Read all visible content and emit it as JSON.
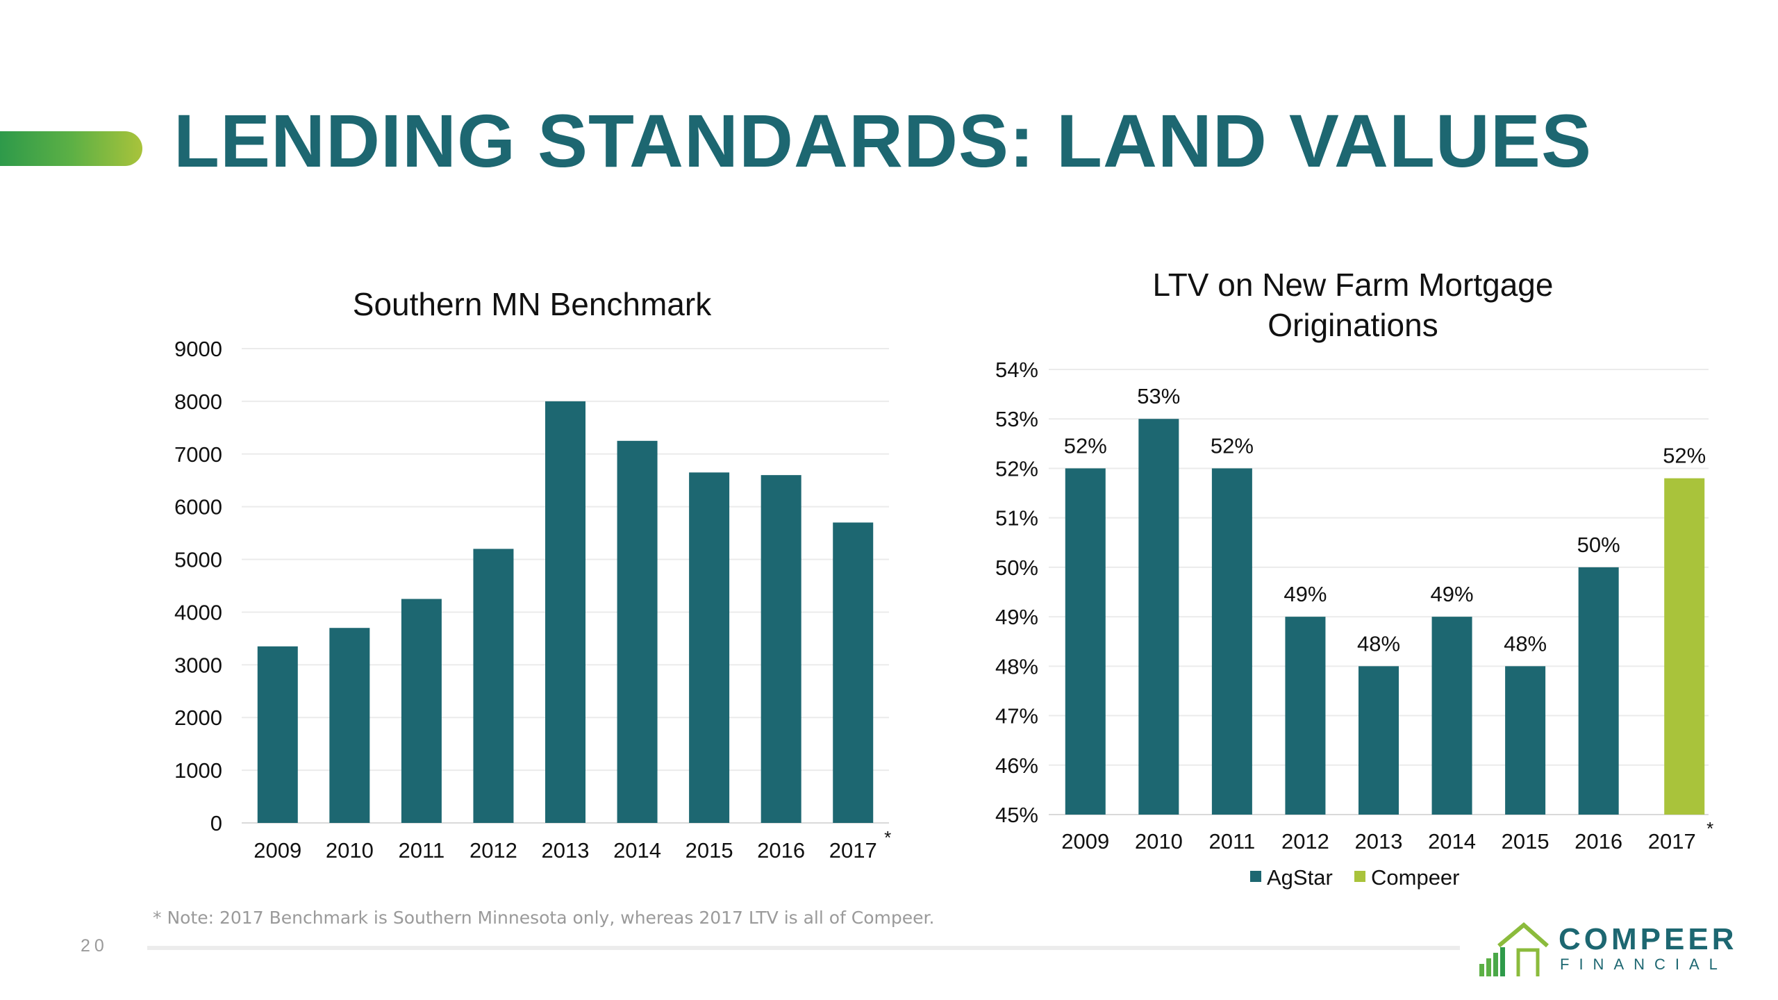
{
  "slide": {
    "title": "LENDING STANDARDS: LAND VALUES",
    "page_number": "20",
    "footnote": "* Note: 2017 Benchmark is Southern Minnesota only, whereas 2017 LTV is all of Compeer."
  },
  "logo": {
    "word": "COMPEER",
    "sub": "FINANCIAL"
  },
  "colors": {
    "teal": "#1d6771",
    "green": "#a9c33b"
  },
  "chart_data": [
    {
      "type": "bar",
      "title": "Southern MN Benchmark",
      "categories": [
        "2009",
        "2010",
        "2011",
        "2012",
        "2013",
        "2014",
        "2015",
        "2016",
        "2017"
      ],
      "category_marks": [
        "",
        "",
        "",
        "",
        "",
        "",
        "",
        "",
        "*"
      ],
      "values": [
        3350,
        3700,
        4250,
        5200,
        8000,
        7250,
        6650,
        6600,
        5700
      ],
      "ylim": [
        0,
        9000
      ],
      "yticks": [
        "0",
        "1000",
        "2000",
        "3000",
        "4000",
        "5000",
        "6000",
        "7000",
        "8000",
        "9000"
      ],
      "grid": true,
      "color": "#1d6771"
    },
    {
      "type": "bar",
      "title": "LTV on New Farm Mortgage Originations",
      "categories": [
        "2009",
        "2010",
        "2011",
        "2012",
        "2013",
        "2014",
        "2015",
        "2016",
        "2017"
      ],
      "category_marks": [
        "",
        "",
        "",
        "",
        "",
        "",
        "",
        "",
        "*"
      ],
      "series": [
        {
          "name": "AgStar",
          "color": "#1d6771",
          "values": [
            52,
            53,
            52,
            49,
            48,
            49,
            48,
            50,
            null
          ]
        },
        {
          "name": "Compeer",
          "color": "#a9c33b",
          "values": [
            null,
            null,
            null,
            null,
            null,
            null,
            null,
            null,
            51.8
          ]
        }
      ],
      "data_labels": [
        "52%",
        "53%",
        "52%",
        "49%",
        "48%",
        "49%",
        "48%",
        "50%",
        "52%"
      ],
      "ylim": [
        45,
        54
      ],
      "yticks": [
        "45%",
        "46%",
        "47%",
        "48%",
        "49%",
        "50%",
        "51%",
        "52%",
        "53%",
        "54%"
      ],
      "grid": true,
      "legend": "bottom"
    }
  ]
}
